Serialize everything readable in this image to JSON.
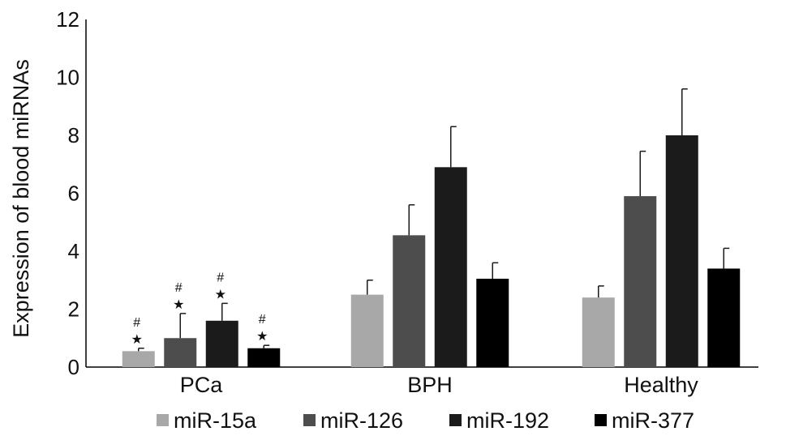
{
  "chart_data": {
    "type": "bar",
    "title": "",
    "xlabel": "",
    "ylabel": "Expression of blood miRNAs",
    "ylim": [
      0,
      12
    ],
    "yticks": [
      0,
      2,
      4,
      6,
      8,
      10,
      12
    ],
    "categories": [
      "PCa",
      "BPH",
      "Healthy"
    ],
    "series": [
      {
        "name": "miR-15a",
        "color": "#a8a8a8",
        "values": [
          0.55,
          2.5,
          2.4
        ],
        "errors": [
          0.1,
          0.5,
          0.4
        ]
      },
      {
        "name": "miR-126",
        "color": "#4d4d4d",
        "values": [
          1.0,
          4.55,
          5.9
        ],
        "errors": [
          0.85,
          1.05,
          1.55
        ]
      },
      {
        "name": "miR-192",
        "color": "#1b1b1b",
        "values": [
          1.6,
          6.9,
          8.0
        ],
        "errors": [
          0.6,
          1.4,
          1.6
        ]
      },
      {
        "name": "miR-377",
        "color": "#000000",
        "values": [
          0.65,
          3.05,
          3.4
        ],
        "errors": [
          0.1,
          0.55,
          0.7
        ]
      }
    ],
    "significance_marks": {
      "category": "PCa",
      "marks": [
        "★",
        "#"
      ]
    },
    "grid": false,
    "legend_position": "bottom"
  }
}
